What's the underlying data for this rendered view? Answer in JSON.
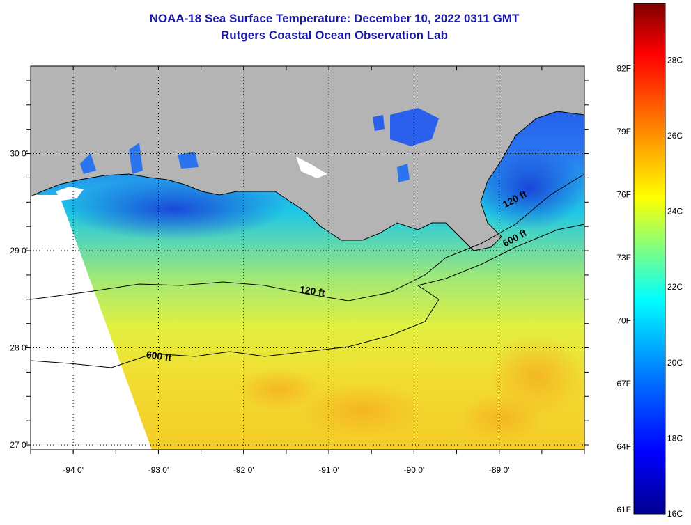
{
  "title": "NOAA-18 Sea Surface Temperature:  December 10, 2022 0311 GMT",
  "subtitle": "Rutgers Coastal Ocean Observation Lab",
  "map": {
    "lon_range": [
      -94.5,
      -88.0
    ],
    "lat_range": [
      26.95,
      30.9
    ],
    "lon_ticks": [
      {
        "value": -94,
        "label": "-94 0'"
      },
      {
        "value": -93,
        "label": "-93 0'"
      },
      {
        "value": -92,
        "label": "-92 0'"
      },
      {
        "value": -91,
        "label": "-91 0'"
      },
      {
        "value": -90,
        "label": "-90 0'"
      },
      {
        "value": -89,
        "label": "-89 0'"
      }
    ],
    "lat_ticks": [
      {
        "value": 30,
        "label": "30 0'"
      },
      {
        "value": 29,
        "label": "29 0'"
      },
      {
        "value": 28,
        "label": "28 0'"
      },
      {
        "value": 27,
        "label": "27 0'"
      }
    ],
    "contour_labels": [
      {
        "label": "120 ft",
        "lon": -88.8,
        "lat": 29.5
      },
      {
        "label": "600 ft",
        "lon": -88.8,
        "lat": 29.1
      },
      {
        "label": "120 ft",
        "lon": -91.2,
        "lat": 28.55
      },
      {
        "label": "600 ft",
        "lon": -93.0,
        "lat": 27.88
      }
    ],
    "land_color": "#b4b4b4",
    "no_data_color": "#ffffff"
  },
  "colorbar": {
    "f_labels": [
      "82F",
      "79F",
      "76F",
      "73F",
      "70F",
      "67F",
      "64F",
      "61F"
    ],
    "c_labels": [
      "28C",
      "26C",
      "24C",
      "22C",
      "20C",
      "18C",
      "16C"
    ],
    "c_range": [
      16,
      29.5
    ],
    "colors": [
      "#00008f",
      "#0000ff",
      "#0080ff",
      "#00ffff",
      "#80ff80",
      "#ffff00",
      "#ff8000",
      "#ff0000",
      "#800000"
    ]
  }
}
